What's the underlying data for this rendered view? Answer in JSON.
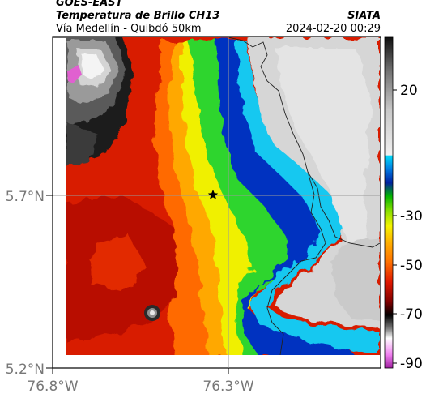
{
  "header": {
    "satellite": "GOES-EAST",
    "product": "Temperatura de Brillo CH13",
    "route": "Vía Medellín - Quibdó 50km",
    "brand": "SIATA",
    "datetime": "2024-02-20 00:29"
  },
  "map": {
    "lat_ticks": [
      "5.7°N",
      "5.2°N"
    ],
    "lon_ticks": [
      "76.8°W",
      "76.3°W"
    ],
    "marker": "star",
    "reference_lines": {
      "lat": 5.7,
      "lon": -76.3
    }
  },
  "colorbar": {
    "ticks": [
      "20",
      "-30",
      "-50",
      "-70",
      "-90"
    ],
    "colors": {
      "magenta": "#c040c0",
      "white": "#ffffff",
      "gray": "#888888",
      "black": "#000000",
      "red": "#d01a00",
      "orange": "#ff7a00",
      "yellow": "#f2f200",
      "green": "#1ed01e",
      "blue": "#0028b4",
      "cyan": "#10c8f0"
    }
  }
}
